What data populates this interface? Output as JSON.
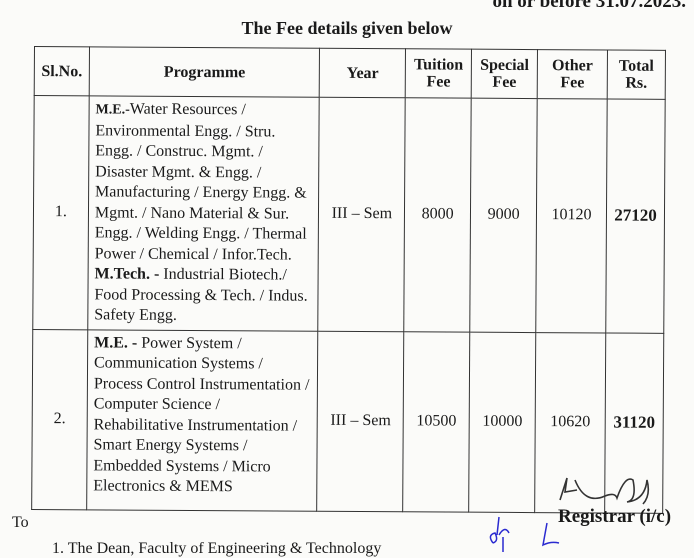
{
  "top_line": "on or before 31.07.2023.",
  "caption": "The Fee details given below",
  "table": {
    "headers": [
      "Sl.No.",
      "Programme",
      "Year",
      "Tuition Fee",
      "Special Fee",
      "Other Fee",
      "Total Rs."
    ],
    "rows": [
      {
        "sl": "1.",
        "prog_prefix1": "M.E.-",
        "prog_text1": "Water Resources / Environmental Engg. / Stru. Engg. / Construc. Mgmt. / Disaster Mgmt. & Engg. / Manufacturing / Energy Engg. & Mgmt. / Nano Material & Sur. Engg. / Welding Engg. / Thermal Power / Chemical / Infor.Tech.",
        "prog_prefix2": "M.Tech. -",
        "prog_text2": " Industrial Biotech./ Food Processing & Tech. / Indus. Safety Engg.",
        "year": "III – Sem",
        "tuition": "8000",
        "special": "9000",
        "other": "10120",
        "total": "27120"
      },
      {
        "sl": "2.",
        "prog_prefix1": "M.E. -",
        "prog_text1": " Power System / Communication Systems / Process Control Instrumentation / Computer Science / Rehabilitative Instrumentation / Smart Energy Systems / Embedded Systems / Micro Electronics & MEMS",
        "year": "III – Sem",
        "tuition": "10500",
        "special": "10000",
        "other": "10620",
        "total": "31120"
      }
    ]
  },
  "to_label": "To",
  "recipients": [
    "1.  The Dean, Faculty of Engineering & Technology"
  ],
  "signatory": "Registrar (i/c)",
  "ink_color": "#2a2ad0"
}
